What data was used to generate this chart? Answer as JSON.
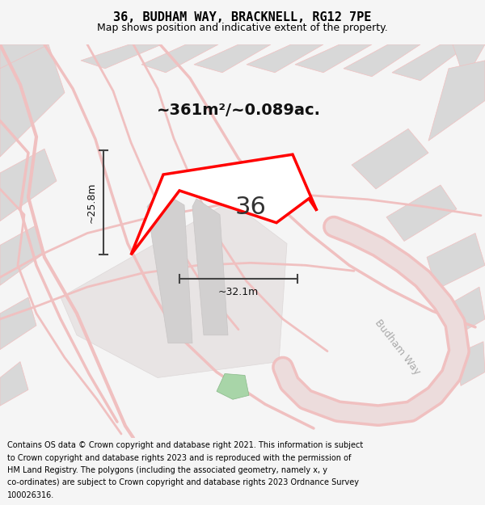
{
  "title": "36, BUDHAM WAY, BRACKNELL, RG12 7PE",
  "subtitle": "Map shows position and indicative extent of the property.",
  "area_text": "~361m²/~0.089ac.",
  "width_label": "~32.1m",
  "height_label": "~25.8m",
  "number_label": "36",
  "street_label": "Budham Way",
  "footer_lines": [
    "Contains OS data © Crown copyright and database right 2021. This information is subject",
    "to Crown copyright and database rights 2023 and is reproduced with the permission of",
    "HM Land Registry. The polygons (including the associated geometry, namely x, y",
    "co-ordinates) are subject to Crown copyright and database rights 2023 Ordnance Survey",
    "100026316."
  ],
  "bg_color": "#f5f5f5",
  "map_bg": "#eeeaea",
  "road_color": "#f0c0c0",
  "building_color": "#d8d8d8",
  "highlight_color": "#ff0000",
  "line_color": "#444444",
  "title_color": "#000000",
  "footer_color": "#000000",
  "figsize": [
    6.0,
    6.25
  ],
  "dpi": 100
}
